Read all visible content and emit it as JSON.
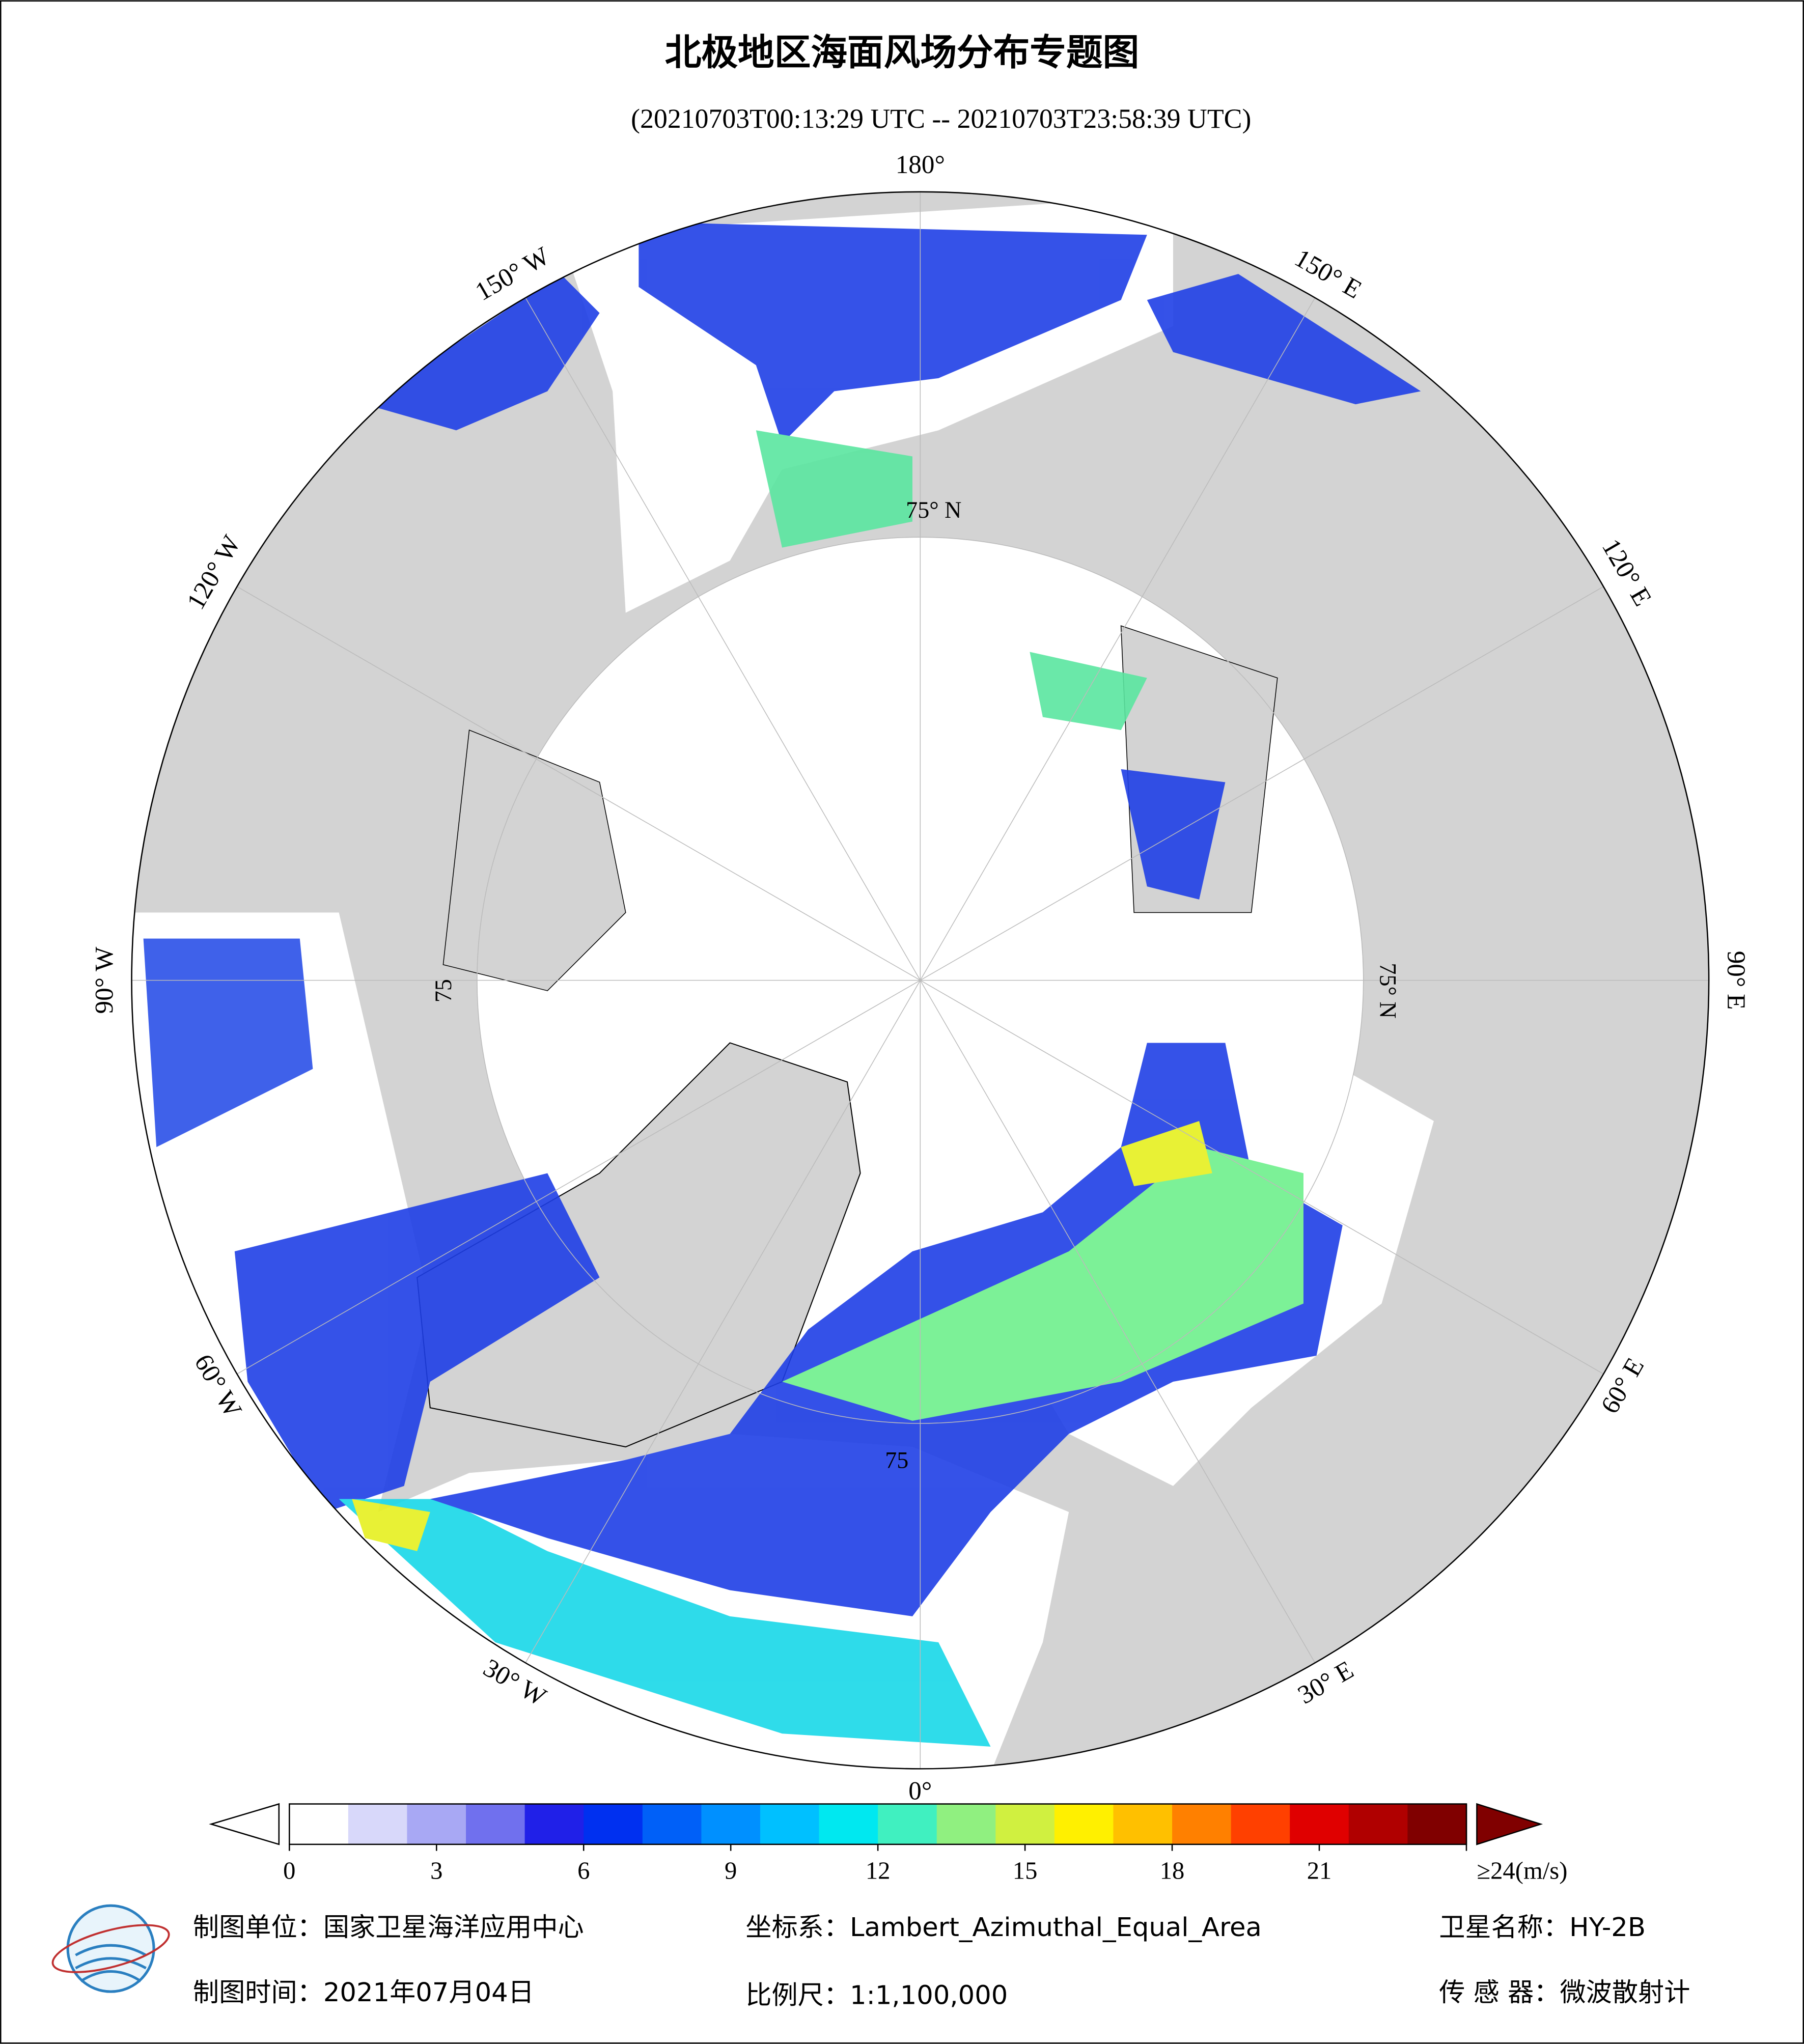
{
  "header": {
    "title": "北极地区海面风场分布专题图",
    "subtitle": "(20210703T00:13:29 UTC -- 20210703T23:58:39 UTC)"
  },
  "map": {
    "longitude_labels": [
      "180°",
      "150° E",
      "120° E",
      "90° E",
      "60° E",
      "30° E",
      "0°",
      "30° W",
      "60° W",
      "90° W",
      "120° W",
      "150° W"
    ],
    "latitude_labels": [
      "75° N",
      "75° N",
      "75",
      "75"
    ]
  },
  "colorbar": {
    "range": [
      0,
      24
    ],
    "ticks": [
      0,
      3,
      6,
      9,
      12,
      15,
      18,
      21,
      {
        "value": 24,
        "label": "≥24(m/s)"
      }
    ],
    "colors": [
      "#ffffff",
      "#d8d8fa",
      "#a8a8f4",
      "#7070ee",
      "#2020e8",
      "#0030f0",
      "#0060f8",
      "#0090ff",
      "#00c0ff",
      "#00e8f0",
      "#40f0c0",
      "#90f080",
      "#d0f040",
      "#fff000",
      "#ffc000",
      "#ff8000",
      "#ff4000",
      "#e00000",
      "#b00000",
      "#800000"
    ],
    "under_color": "#ffffff",
    "over_color": "#800000"
  },
  "footer": {
    "producer": "制图单位：国家卫星海洋应用中心",
    "coordinate_system": "坐标系：Lambert_Azimuthal_Equal_Area",
    "satellite": "卫星名称：HY-2B",
    "date": "制图时间：2021年07月04日",
    "scale": "比例尺：1:1,100,000",
    "sensor": "传 感 器：微波散射计"
  }
}
